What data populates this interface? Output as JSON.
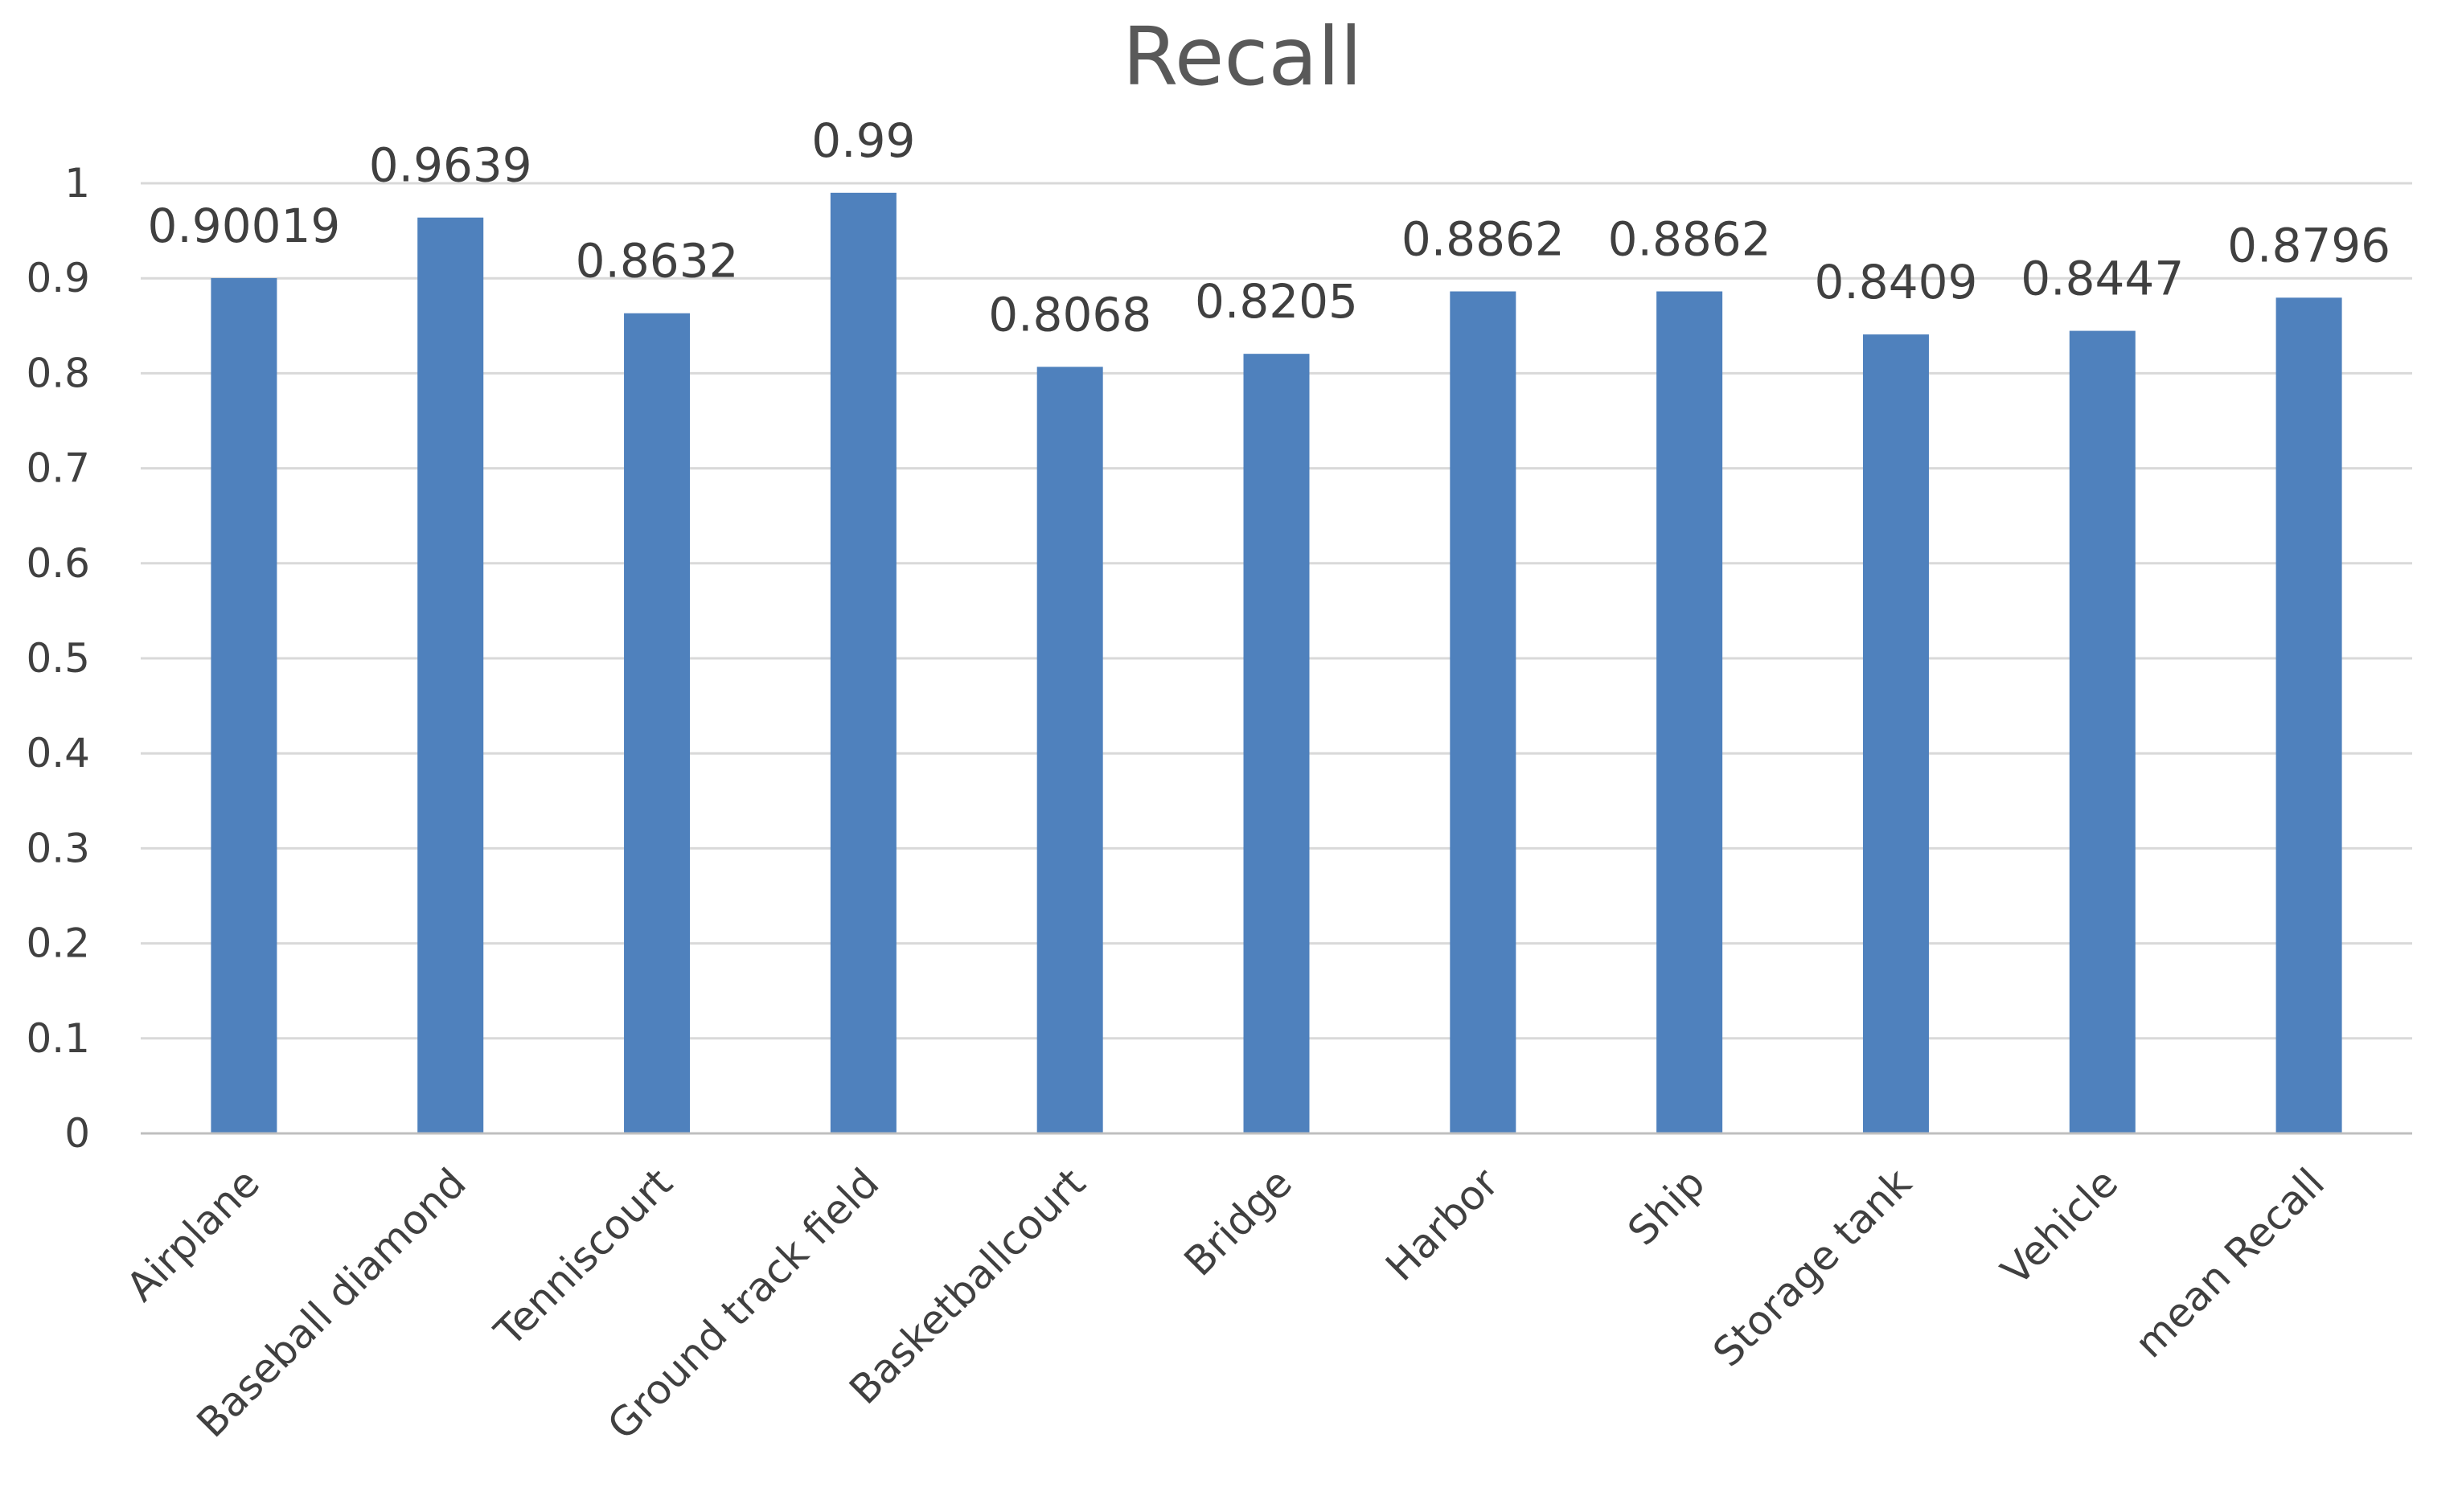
{
  "chart_data": {
    "type": "bar",
    "title": "Recall",
    "categories": [
      "Airplane",
      "Baseball diamond",
      "Tenniscourt",
      "Ground track field",
      "Basketballcourt",
      "Bridge",
      "Harbor",
      "Ship",
      "Storage tank",
      "Vehicle",
      "mean Recall"
    ],
    "values": [
      0.90019,
      0.9639,
      0.8632,
      0.99,
      0.8068,
      0.8205,
      0.8862,
      0.8862,
      0.8409,
      0.8447,
      0.8796
    ],
    "data_labels": [
      "0.90019",
      "0.9639",
      "0.8632",
      "0.99",
      "0.8068",
      "0.8205",
      "0.8862",
      "0.8862",
      "0.8409",
      "0.8447",
      "0.8796"
    ],
    "yticks": [
      "0",
      "0.1",
      "0.2",
      "0.3",
      "0.4",
      "0.5",
      "0.6",
      "0.7",
      "0.8",
      "0.9",
      "1"
    ],
    "ylim": [
      0,
      1
    ],
    "grid": true,
    "legend": "none",
    "bar_color": "#4f81bd"
  }
}
